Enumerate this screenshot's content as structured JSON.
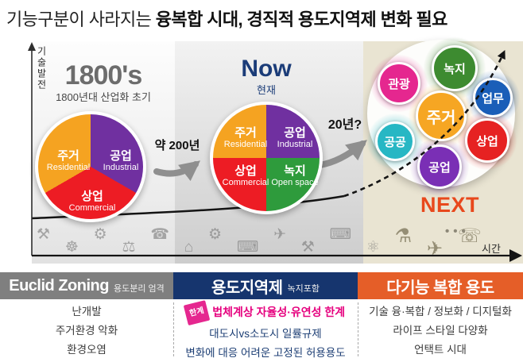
{
  "title": {
    "prefix": "기능구분이 사라지는 ",
    "emphasis": "융복합 시대, 경직적 용도지역제 변화 필요"
  },
  "chart": {
    "y_axis_label": "기술발전",
    "x_axis_label": "시간",
    "transition_past_to_now": "약 200년",
    "transition_now_to_next": "20년?",
    "past": {
      "title": "1800's",
      "subtitle": "1800년대 산업화 초기",
      "slices": [
        {
          "ko": "공업",
          "en": "Industrial",
          "color": "#7030A0",
          "sweep_deg": 120
        },
        {
          "ko": "상업",
          "en": "Commercial",
          "color": "#ED1C24",
          "sweep_deg": 120
        },
        {
          "ko": "주거",
          "en": "Residential",
          "color": "#F5A321",
          "sweep_deg": 120
        }
      ]
    },
    "now": {
      "title": "Now",
      "subtitle": "현재",
      "slices": [
        {
          "ko": "공업",
          "en": "Industrial",
          "color": "#7030A0",
          "sweep_deg": 90
        },
        {
          "ko": "녹지",
          "en": "Open space",
          "color": "#2E9B3C",
          "sweep_deg": 90
        },
        {
          "ko": "상업",
          "en": "Commercial",
          "color": "#ED1C24",
          "sweep_deg": 90
        },
        {
          "ko": "주거",
          "en": "Residential",
          "color": "#F5A321",
          "sweep_deg": 90
        }
      ]
    },
    "next": {
      "label": "NEXT",
      "label_color": "#E8481C",
      "more_dots": "•••",
      "bubbles": [
        {
          "label": "관광",
          "color": "#E5278F"
        },
        {
          "label": "녹지",
          "color": "#3D8B30"
        },
        {
          "label": "업무",
          "color": "#1A5EB8"
        },
        {
          "label": "주거",
          "color": "#F6A623"
        },
        {
          "label": "공공",
          "color": "#27B7C4"
        },
        {
          "label": "상업",
          "color": "#E62222"
        },
        {
          "label": "공업",
          "color": "#7A2FB5"
        }
      ]
    },
    "era_icons": [
      {
        "name": "oil-derrick",
        "glyph": "⚒"
      },
      {
        "name": "locomotive",
        "glyph": "☸"
      },
      {
        "name": "bicycle",
        "glyph": "⚙"
      },
      {
        "name": "conveyor-belt",
        "glyph": "⚖"
      },
      {
        "name": "telephone",
        "glyph": "☎"
      },
      {
        "name": "factory",
        "glyph": "⌂"
      },
      {
        "name": "automobile",
        "glyph": "⚙"
      },
      {
        "name": "television",
        "glyph": "⌨"
      },
      {
        "name": "helicopter",
        "glyph": "✈"
      },
      {
        "name": "robot-arm",
        "glyph": "⚒"
      },
      {
        "name": "laptop",
        "glyph": "⌨"
      },
      {
        "name": "microchip",
        "glyph": "⚛"
      },
      {
        "name": "iot-network",
        "glyph": "⚗"
      },
      {
        "name": "drone",
        "glyph": "✈"
      },
      {
        "name": "robot",
        "glyph": "☏"
      }
    ]
  },
  "bottom": {
    "columns": [
      {
        "header": "Euclid Zoning",
        "header_sub": "용도분리 엄격",
        "header_bg": "#7F7F7F",
        "items": [
          "난개발",
          "주거환경 악화",
          "환경오염"
        ]
      },
      {
        "header": "용도지역제",
        "header_sub": "녹지포함",
        "header_bg": "#16356E",
        "badge": "한계",
        "highlight": "법체계상 자율성·유연성 한계",
        "items": [
          "대도시vs소도시 일률규제",
          "변화에 대응 어려운 고정된 허용용도"
        ]
      },
      {
        "header": "다기능 복합 용도",
        "header_bg": "#E55E28",
        "items": [
          "기술 융·복합 / 정보화 / 디지털화",
          "라이프 스타일 다양화",
          "언택트 시대"
        ]
      }
    ]
  }
}
